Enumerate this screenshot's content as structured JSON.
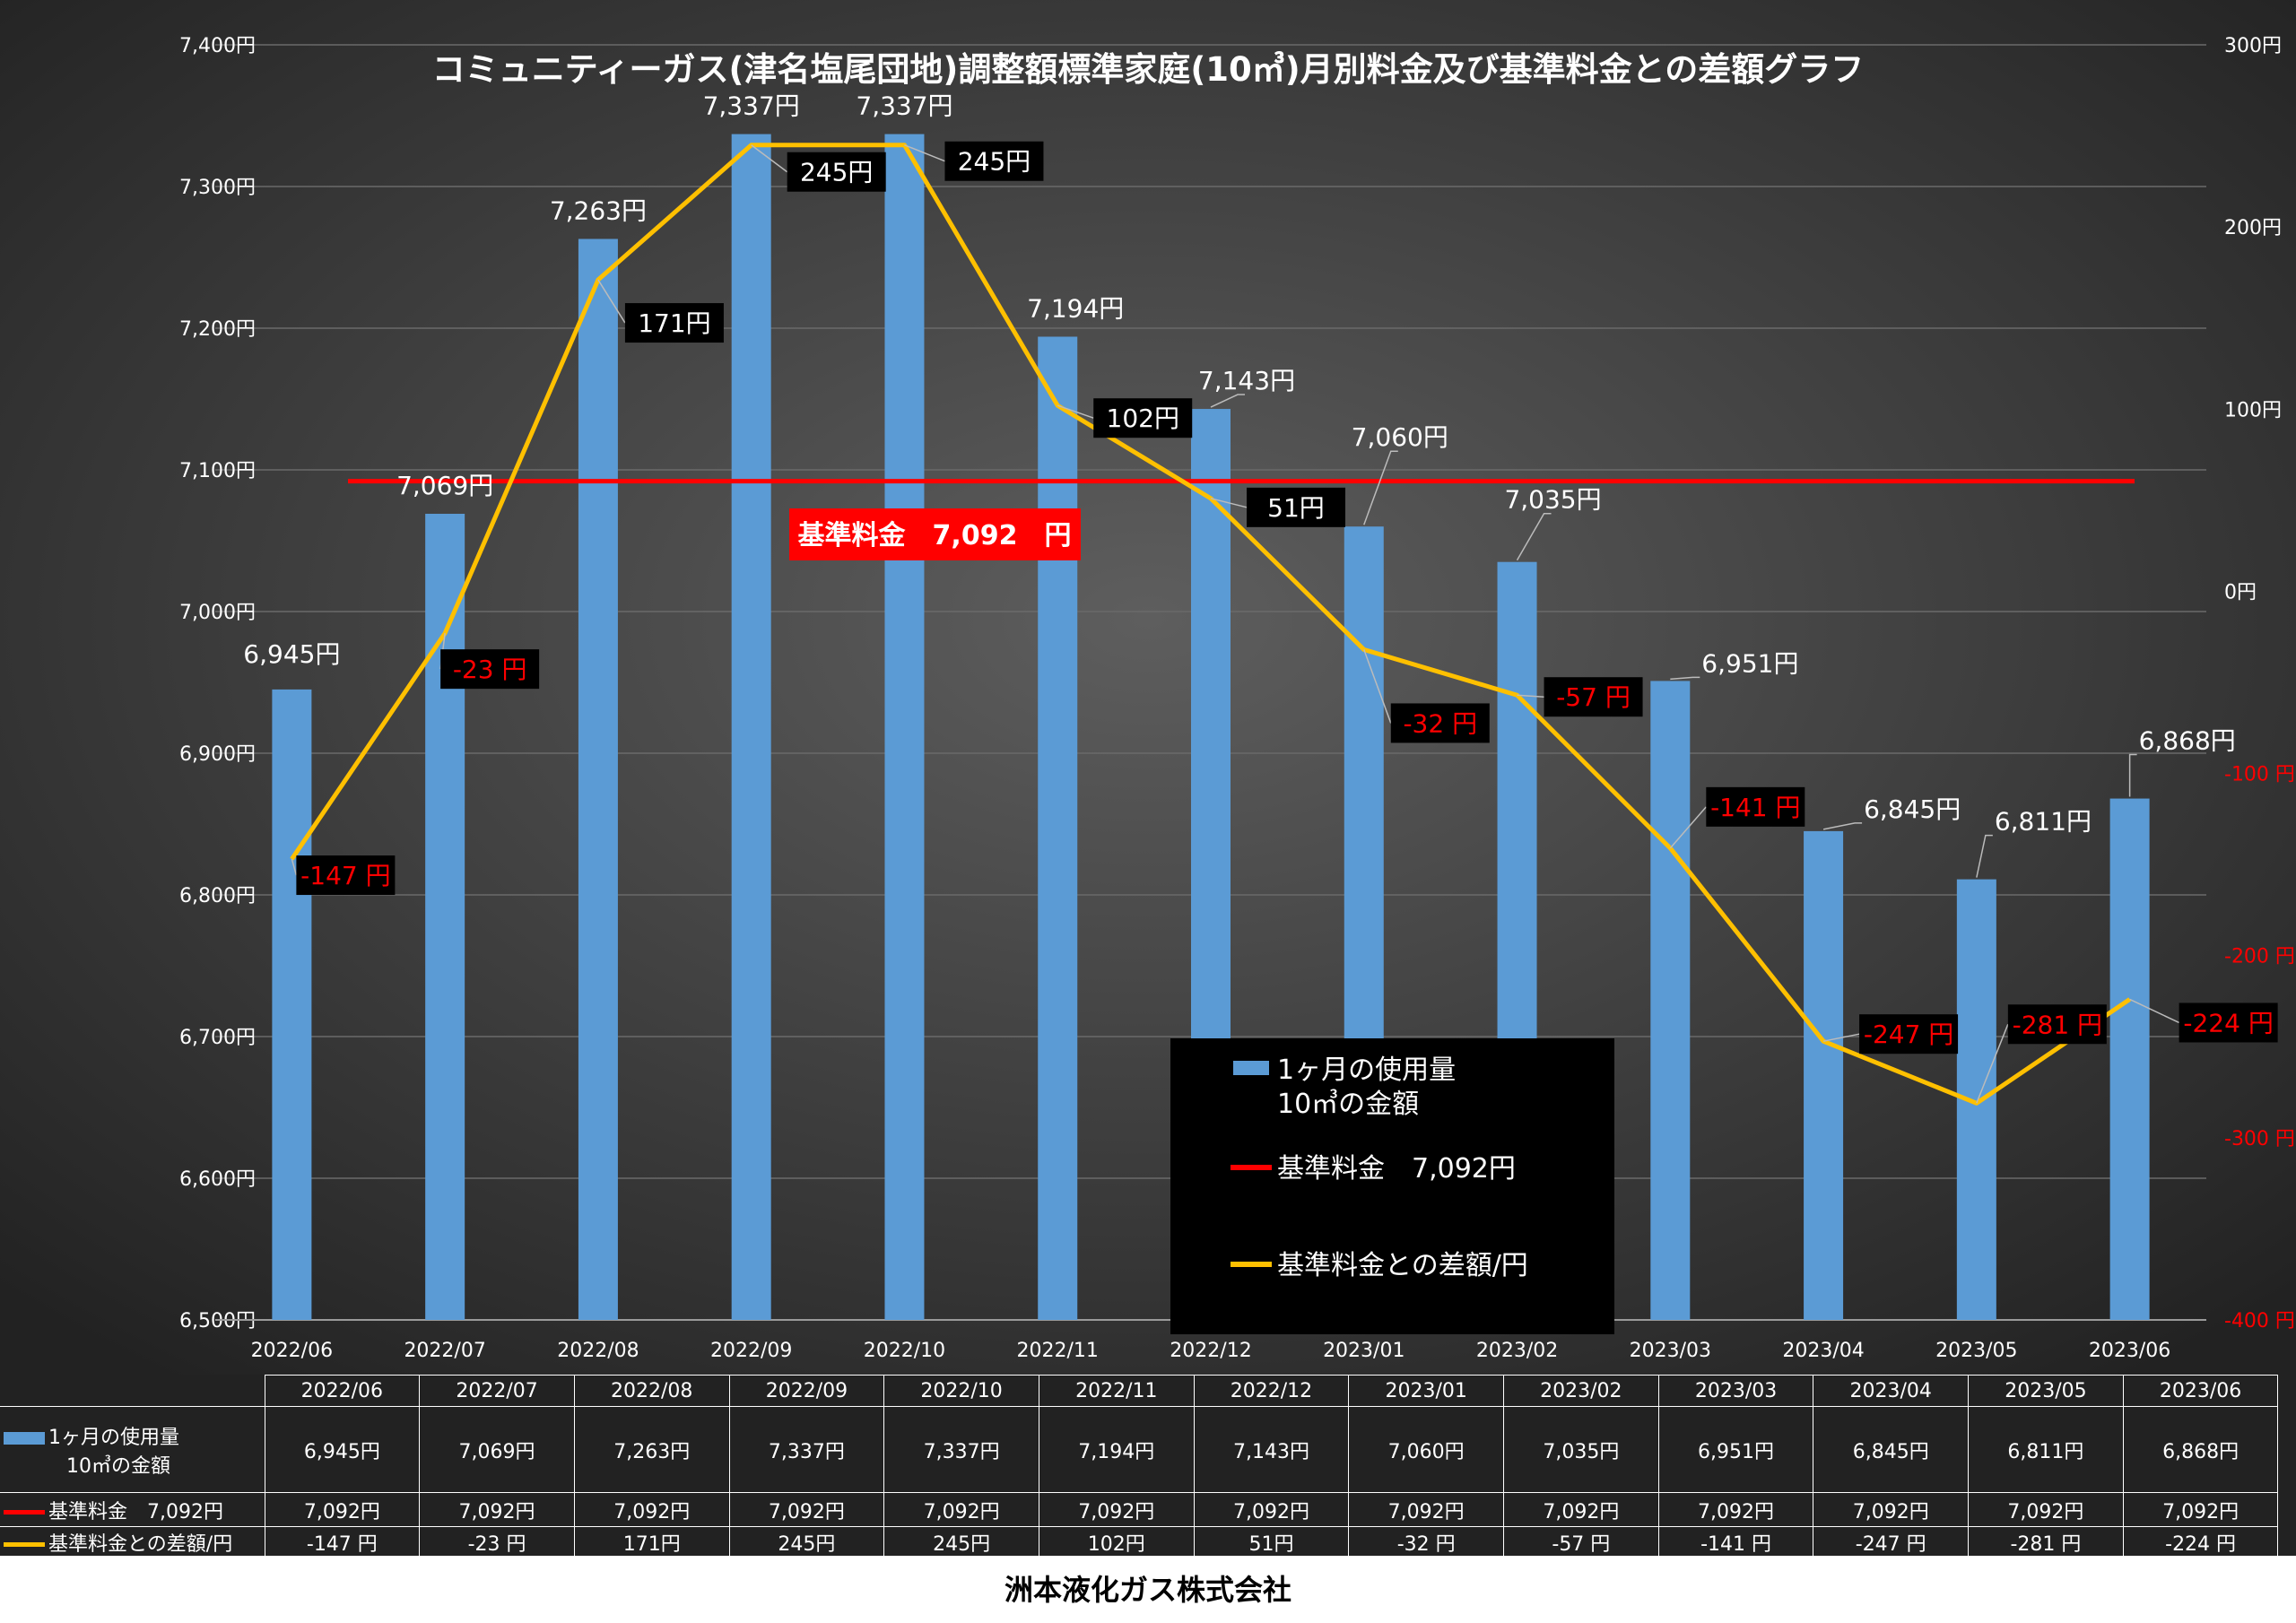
{
  "chart_data": {
    "type": "bar",
    "title": "コミュニティーガス(津名塩尾団地)調整額標準家庭(10㎥)月別料金及び基準料金との差額グラフ",
    "categories": [
      "2022/06",
      "2022/07",
      "2022/08",
      "2022/09",
      "2022/10",
      "2022/11",
      "2022/12",
      "2023/01",
      "2023/02",
      "2023/03",
      "2023/04",
      "2023/05",
      "2023/06"
    ],
    "ylim": [
      6500,
      7400
    ],
    "y_ticks": [
      "6,500円",
      "6,600円",
      "6,700円",
      "6,800円",
      "6,900円",
      "7,000円",
      "7,100円",
      "7,200円",
      "7,300円",
      "7,400円"
    ],
    "y2lim": [
      -400,
      300
    ],
    "y2_ticks": [
      "-400 円",
      "-300 円",
      "-200 円",
      "-100 円",
      "0円",
      "100円",
      "200円",
      "300円"
    ],
    "grid": true,
    "series": [
      {
        "name": "1ヶ月の使用量 10㎥の金額",
        "type": "bar",
        "axis": "left",
        "color": "#5b9bd5",
        "values": [
          6945,
          7069,
          7263,
          7337,
          7337,
          7194,
          7143,
          7060,
          7035,
          6951,
          6845,
          6811,
          6868
        ],
        "labels": [
          "6,945円",
          "7,069円",
          "7,263円",
          "7,337円",
          "7,337円",
          "7,194円",
          "7,143円",
          "7,060円",
          "7,035円",
          "6,951円",
          "6,845円",
          "6,811円",
          "6,868円"
        ]
      },
      {
        "name": "基準料金　7,092円",
        "type": "line",
        "axis": "left",
        "color": "#ff0000",
        "values": [
          7092,
          7092,
          7092,
          7092,
          7092,
          7092,
          7092,
          7092,
          7092,
          7092,
          7092,
          7092,
          7092
        ]
      },
      {
        "name": "基準料金との差額/円",
        "type": "line",
        "axis": "right",
        "color": "#ffc000",
        "values": [
          -147,
          -23,
          171,
          245,
          245,
          102,
          51,
          -32,
          -57,
          -141,
          -247,
          -281,
          -224
        ],
        "labels": [
          "-147 円",
          "-23 円",
          "171円",
          "245円",
          "245円",
          "102円",
          "51円",
          "-32 円",
          "-57 円",
          "-141 円",
          "-247 円",
          "-281 円",
          "-224 円"
        ]
      }
    ],
    "annotation": "基準料金　7,092　円",
    "legend": {
      "position": "bottom-center",
      "items": [
        {
          "lines": [
            "1ヶ月の使用量",
            "10㎥の金額"
          ],
          "color": "#5b9bd5",
          "kind": "bar"
        },
        {
          "lines": [
            "基準料金　7,092円"
          ],
          "color": "#ff0000",
          "kind": "line"
        },
        {
          "lines": [
            "基準料金との差額/円"
          ],
          "color": "#ffc000",
          "kind": "line"
        }
      ]
    }
  },
  "table": {
    "months": [
      "2022/06",
      "2022/07",
      "2022/08",
      "2022/09",
      "2022/10",
      "2022/11",
      "2022/12",
      "2023/01",
      "2023/02",
      "2023/03",
      "2023/04",
      "2023/05",
      "2023/06"
    ],
    "rows": [
      {
        "label_lines": [
          "1ヶ月の使用量",
          "10㎥の金額"
        ],
        "color": "#5b9bd5",
        "kind": "bar",
        "cells": [
          "6,945円",
          "7,069円",
          "7,263円",
          "7,337円",
          "7,337円",
          "7,194円",
          "7,143円",
          "7,060円",
          "7,035円",
          "6,951円",
          "6,845円",
          "6,811円",
          "6,868円"
        ]
      },
      {
        "label_lines": [
          "基準料金　7,092円"
        ],
        "color": "#ff0000",
        "kind": "line",
        "cells": [
          "7,092円",
          "7,092円",
          "7,092円",
          "7,092円",
          "7,092円",
          "7,092円",
          "7,092円",
          "7,092円",
          "7,092円",
          "7,092円",
          "7,092円",
          "7,092円",
          "7,092円"
        ]
      },
      {
        "label_lines": [
          "基準料金との差額/円"
        ],
        "color": "#ffc000",
        "kind": "line",
        "cells": [
          "-147 円",
          "-23 円",
          "171円",
          "245円",
          "245円",
          "102円",
          "51円",
          "-32 円",
          "-57 円",
          "-141 円",
          "-247 円",
          "-281 円",
          "-224 円"
        ]
      }
    ]
  },
  "footer": "洲本液化ガス株式会社",
  "colors": {
    "bar": "#5b9bd5",
    "base_line": "#ff0000",
    "diff_line": "#ffc000",
    "negative_text": "#ff0000",
    "label_box": "#000000",
    "background_center": "#595959",
    "background_edge": "#202020"
  }
}
